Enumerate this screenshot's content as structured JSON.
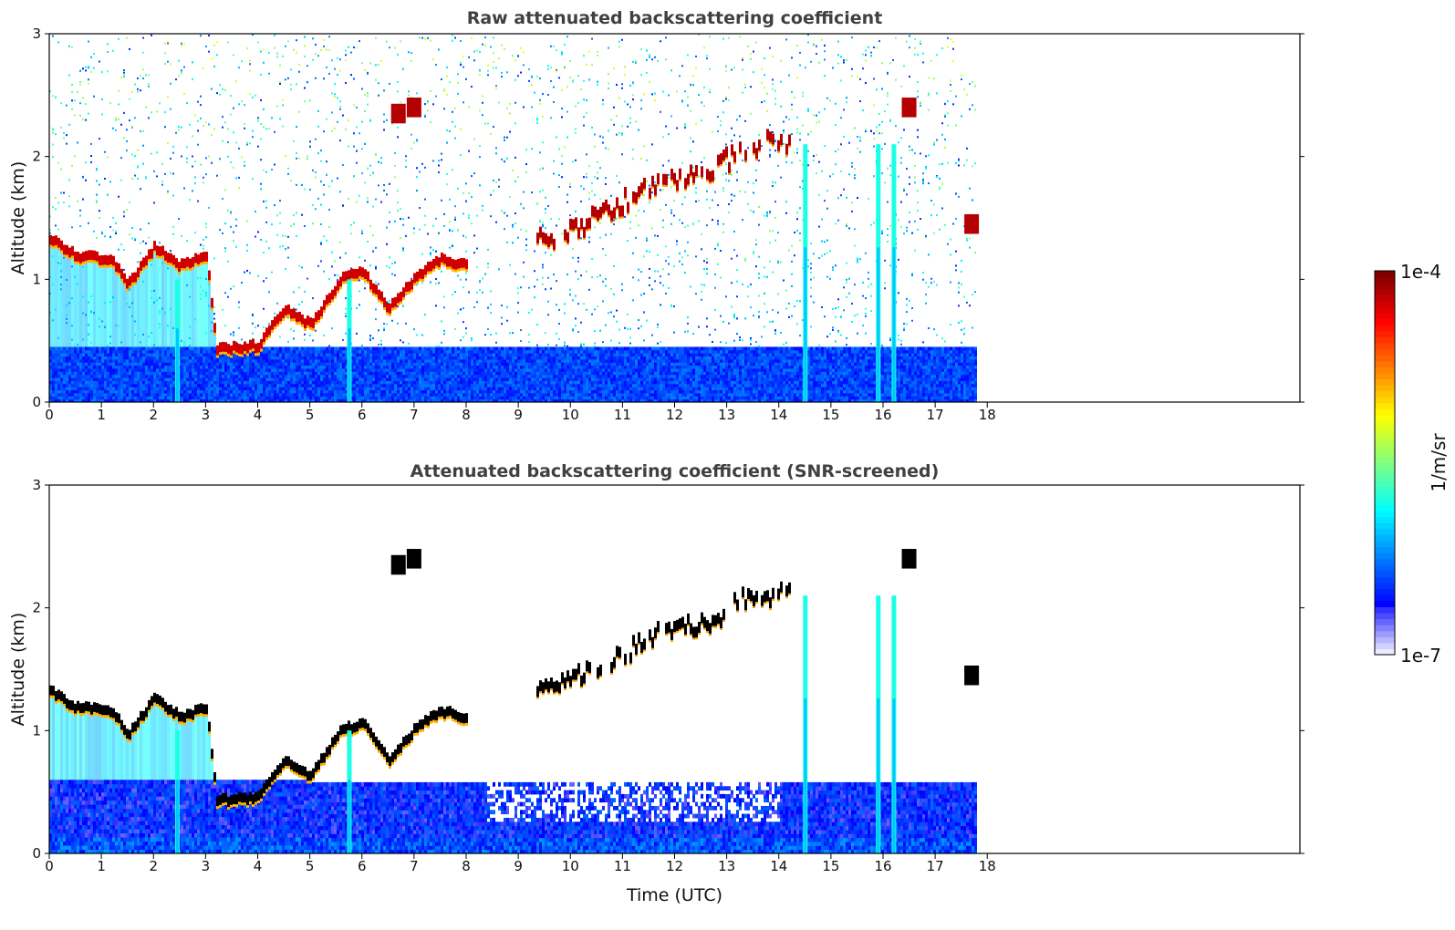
{
  "chart_data": [
    {
      "type": "heatmap",
      "title": "Raw attenuated backscattering coefficient",
      "xlabel": "",
      "ylabel": "Altitude (km)",
      "xlim": [
        0,
        24
      ],
      "ylim": [
        0,
        3
      ],
      "x_ticks": [
        "0",
        "1",
        "2",
        "3",
        "4",
        "5",
        "6",
        "7",
        "8",
        "9",
        "10",
        "11",
        "12",
        "13",
        "14",
        "15",
        "16",
        "17",
        "18"
      ],
      "y_ticks": [
        "0",
        "1",
        "2",
        "3"
      ],
      "data_extent_hours": [
        0,
        17.8
      ],
      "features": {
        "boundary_layer_top": [
          [
            0,
            1.32
          ],
          [
            0.5,
            1.18
          ],
          [
            1.2,
            1.15
          ],
          [
            1.5,
            0.95
          ],
          [
            2.0,
            1.25
          ],
          [
            2.5,
            1.1
          ],
          [
            3.0,
            1.18
          ],
          [
            3.2,
            0.42
          ],
          [
            4.0,
            0.45
          ],
          [
            4.5,
            0.75
          ],
          [
            5.0,
            0.62
          ],
          [
            5.6,
            1.0
          ],
          [
            6.0,
            1.05
          ],
          [
            6.5,
            0.75
          ],
          [
            7.0,
            1.0
          ],
          [
            7.5,
            1.15
          ],
          [
            8.0,
            1.1
          ]
        ],
        "elevated_layer": [
          [
            9.3,
            1.3
          ],
          [
            9.8,
            1.35
          ],
          [
            10.3,
            1.45
          ],
          [
            10.8,
            1.55
          ],
          [
            11.3,
            1.7
          ],
          [
            11.8,
            1.8
          ],
          [
            12.3,
            1.85
          ],
          [
            12.8,
            1.9
          ],
          [
            13.3,
            2.05
          ],
          [
            13.8,
            2.1
          ],
          [
            14.2,
            2.1
          ]
        ],
        "isolated_features": [
          [
            6.7,
            2.35
          ],
          [
            7.0,
            2.4
          ],
          [
            16.5,
            2.4
          ],
          [
            17.7,
            1.45
          ]
        ],
        "precipitation_shafts_hours": [
          2.45,
          5.75,
          14.5,
          15.9,
          16.2
        ],
        "raw_noise": true
      }
    },
    {
      "type": "heatmap",
      "title": "Attenuated backscattering coefficient (SNR-screened)",
      "xlabel": "Time (UTC)",
      "ylabel": "Altitude (km)",
      "xlim": [
        0,
        24
      ],
      "ylim": [
        0,
        3
      ],
      "x_ticks": [
        "0",
        "1",
        "2",
        "3",
        "4",
        "5",
        "6",
        "7",
        "8",
        "9",
        "10",
        "11",
        "12",
        "13",
        "14",
        "15",
        "16",
        "17",
        "18"
      ],
      "y_ticks": [
        "0",
        "1",
        "2",
        "3"
      ],
      "data_extent_hours": [
        0,
        17.8
      ],
      "features": {
        "boundary_layer_top": [
          [
            0,
            1.32
          ],
          [
            0.5,
            1.18
          ],
          [
            1.2,
            1.15
          ],
          [
            1.5,
            0.95
          ],
          [
            2.0,
            1.25
          ],
          [
            2.5,
            1.1
          ],
          [
            3.0,
            1.18
          ],
          [
            3.2,
            0.42
          ],
          [
            4.0,
            0.45
          ],
          [
            4.5,
            0.75
          ],
          [
            5.0,
            0.62
          ],
          [
            5.6,
            1.0
          ],
          [
            6.0,
            1.05
          ],
          [
            6.5,
            0.75
          ],
          [
            7.0,
            1.0
          ],
          [
            7.5,
            1.15
          ],
          [
            8.0,
            1.1
          ]
        ],
        "elevated_layer": [
          [
            9.3,
            1.3
          ],
          [
            9.8,
            1.35
          ],
          [
            10.3,
            1.45
          ],
          [
            10.8,
            1.55
          ],
          [
            11.3,
            1.7
          ],
          [
            11.8,
            1.8
          ],
          [
            12.3,
            1.85
          ],
          [
            12.8,
            1.9
          ],
          [
            13.3,
            2.05
          ],
          [
            13.8,
            2.1
          ],
          [
            14.2,
            2.1
          ]
        ],
        "isolated_features": [
          [
            6.7,
            2.35
          ],
          [
            7.0,
            2.4
          ],
          [
            16.5,
            2.4
          ],
          [
            17.7,
            1.45
          ]
        ],
        "precipitation_shafts_hours": [
          2.45,
          5.75,
          14.5,
          15.9,
          16.2
        ],
        "raw_noise": false
      }
    }
  ],
  "colorbar": {
    "colormap": "jet",
    "min_label": "1e-7",
    "max_label": "1e-4",
    "range": [
      1e-07,
      0.0001
    ],
    "scale": "log",
    "label": "1/m/sr"
  }
}
